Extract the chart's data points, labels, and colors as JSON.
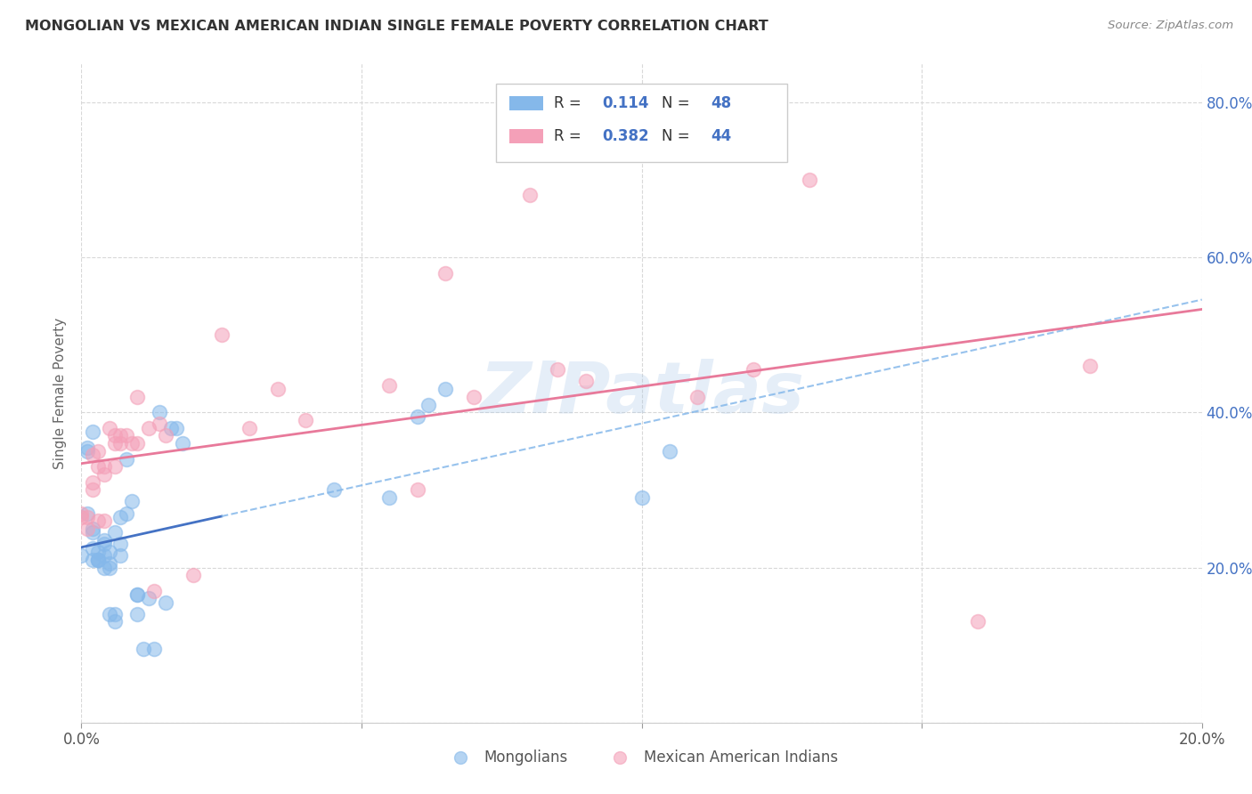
{
  "title": "MONGOLIAN VS MEXICAN AMERICAN INDIAN SINGLE FEMALE POVERTY CORRELATION CHART",
  "source": "Source: ZipAtlas.com",
  "ylabel": "Single Female Poverty",
  "xlim": [
    0.0,
    0.2
  ],
  "ylim": [
    0.0,
    0.85
  ],
  "x_ticks_shown": [
    0.0,
    0.2
  ],
  "x_ticks_minor": [
    0.05,
    0.1,
    0.15
  ],
  "y_ticks": [
    0.0,
    0.2,
    0.4,
    0.6,
    0.8
  ],
  "y_ticks_right": [
    0.2,
    0.4,
    0.6,
    0.8
  ],
  "mongolians_R": 0.114,
  "mongolians_N": 48,
  "mexican_R": 0.382,
  "mexican_N": 44,
  "mongolian_color": "#85b8ea",
  "mexican_color": "#f4a0b8",
  "mongolian_line_color": "#4472c4",
  "mexican_line_color": "#e8799a",
  "mongolian_dash_color": "#85b8ea",
  "mongolian_x": [
    0.0,
    0.001,
    0.001,
    0.001,
    0.002,
    0.002,
    0.002,
    0.002,
    0.002,
    0.003,
    0.003,
    0.003,
    0.003,
    0.004,
    0.004,
    0.004,
    0.004,
    0.005,
    0.005,
    0.005,
    0.005,
    0.006,
    0.006,
    0.006,
    0.007,
    0.007,
    0.007,
    0.008,
    0.008,
    0.009,
    0.01,
    0.01,
    0.01,
    0.011,
    0.012,
    0.013,
    0.014,
    0.015,
    0.016,
    0.017,
    0.018,
    0.045,
    0.055,
    0.06,
    0.062,
    0.065,
    0.1,
    0.105
  ],
  "mongolian_y": [
    0.215,
    0.27,
    0.355,
    0.35,
    0.375,
    0.25,
    0.245,
    0.225,
    0.21,
    0.21,
    0.21,
    0.21,
    0.22,
    0.23,
    0.235,
    0.215,
    0.2,
    0.22,
    0.2,
    0.205,
    0.14,
    0.13,
    0.14,
    0.245,
    0.265,
    0.23,
    0.215,
    0.27,
    0.34,
    0.285,
    0.14,
    0.165,
    0.165,
    0.095,
    0.16,
    0.095,
    0.4,
    0.155,
    0.38,
    0.38,
    0.36,
    0.3,
    0.29,
    0.395,
    0.41,
    0.43,
    0.29,
    0.35
  ],
  "mexican_x": [
    0.0,
    0.0,
    0.001,
    0.001,
    0.002,
    0.002,
    0.002,
    0.003,
    0.003,
    0.003,
    0.004,
    0.004,
    0.004,
    0.005,
    0.006,
    0.006,
    0.006,
    0.007,
    0.007,
    0.008,
    0.009,
    0.01,
    0.01,
    0.012,
    0.013,
    0.014,
    0.015,
    0.02,
    0.025,
    0.03,
    0.035,
    0.04,
    0.055,
    0.06,
    0.065,
    0.07,
    0.08,
    0.085,
    0.09,
    0.11,
    0.12,
    0.13,
    0.16,
    0.18
  ],
  "mexican_y": [
    0.27,
    0.265,
    0.25,
    0.265,
    0.3,
    0.31,
    0.345,
    0.26,
    0.33,
    0.35,
    0.32,
    0.33,
    0.26,
    0.38,
    0.37,
    0.36,
    0.33,
    0.36,
    0.37,
    0.37,
    0.36,
    0.36,
    0.42,
    0.38,
    0.17,
    0.385,
    0.37,
    0.19,
    0.5,
    0.38,
    0.43,
    0.39,
    0.435,
    0.3,
    0.58,
    0.42,
    0.68,
    0.455,
    0.44,
    0.42,
    0.455,
    0.7,
    0.13,
    0.46
  ],
  "watermark": "ZIPatlas",
  "background_color": "#ffffff",
  "grid_color": "#d8d8d8"
}
